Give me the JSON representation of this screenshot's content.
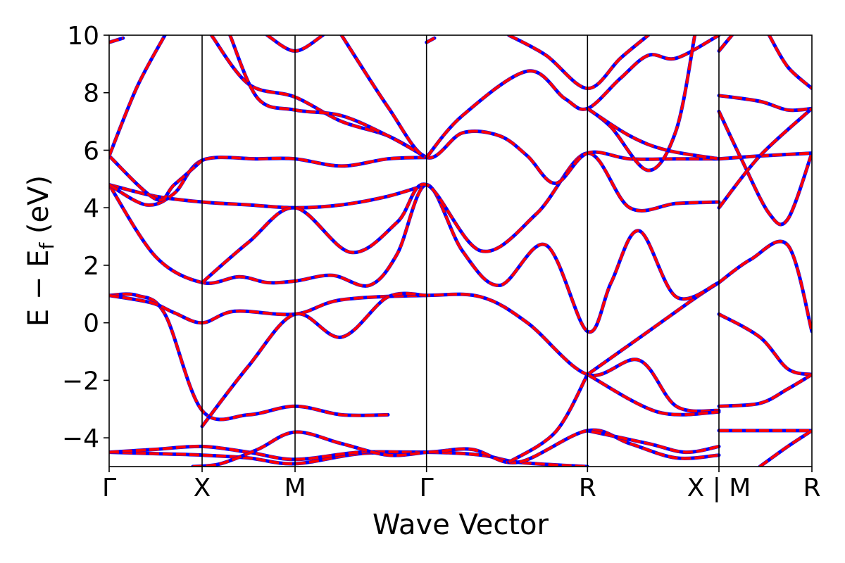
{
  "chart_data": {
    "type": "line",
    "xlabel": "Wave Vector",
    "ylabel_main": "E − E",
    "ylabel_sub": "f",
    "ylabel_unit": " (eV)",
    "ylim": [
      -5,
      10
    ],
    "yticks": [
      {
        "value": -4,
        "label": "−4"
      },
      {
        "value": -2,
        "label": "−2"
      },
      {
        "value": 0,
        "label": "0"
      },
      {
        "value": 2,
        "label": "2"
      },
      {
        "value": 4,
        "label": "4"
      },
      {
        "value": 6,
        "label": "6"
      },
      {
        "value": 8,
        "label": "8"
      },
      {
        "value": 10,
        "label": "10"
      }
    ],
    "kpoints": [
      {
        "pos": 0.0,
        "label": "Γ"
      },
      {
        "pos": 1.0,
        "label": "X"
      },
      {
        "pos": 2.0,
        "label": "M"
      },
      {
        "pos": 3.414,
        "label": "Γ"
      },
      {
        "pos": 5.146,
        "label": "R"
      },
      {
        "pos": 6.56,
        "label": "X | M"
      },
      {
        "pos": 7.56,
        "label": "R"
      }
    ],
    "xlim": [
      0,
      7.56
    ],
    "break_at": 6.56,
    "colors": {
      "dft": "#0000ff",
      "fit": "#ff0000",
      "frame": "#000000"
    },
    "series": [
      {
        "points": [
          [
            0,
            -4.5
          ],
          [
            0.5,
            -4.55
          ],
          [
            1,
            -4.6
          ],
          [
            1.5,
            -4.7
          ],
          [
            2,
            -4.9
          ],
          [
            2.7,
            -4.55
          ],
          [
            3.414,
            -4.5
          ],
          [
            4.0,
            -4.6
          ],
          [
            4.4,
            -4.85
          ],
          [
            5.146,
            -5.0
          ]
        ]
      },
      {
        "points": [
          [
            0,
            -4.5
          ],
          [
            0.5,
            -4.4
          ],
          [
            1,
            -4.3
          ],
          [
            1.5,
            -4.5
          ],
          [
            2,
            -4.75
          ],
          [
            2.7,
            -4.5
          ],
          [
            3.414,
            -4.5
          ],
          [
            3.9,
            -4.4
          ],
          [
            4.4,
            -4.85
          ],
          [
            5.146,
            -3.75
          ],
          [
            5.6,
            -4.2
          ],
          [
            6.1,
            -4.7
          ],
          [
            6.56,
            -4.6
          ]
        ]
      },
      {
        "points": [
          [
            6.56,
            -4.3
          ],
          [
            6.2,
            -4.5
          ],
          [
            5.8,
            -4.2
          ],
          [
            5.146,
            -3.75
          ]
        ]
      },
      {
        "points": [
          [
            0.9,
            -5.0
          ],
          [
            1.2,
            -4.9
          ],
          [
            1.6,
            -4.4
          ],
          [
            2,
            -3.8
          ],
          [
            2.5,
            -4.2
          ],
          [
            3.0,
            -4.6
          ],
          [
            3.414,
            -4.5
          ]
        ]
      },
      {
        "points": [
          [
            0,
            0.95
          ],
          [
            0.3,
            0.95
          ],
          [
            0.6,
            0.3
          ],
          [
            1,
            -3.05
          ],
          [
            1.5,
            -3.2
          ],
          [
            2,
            -2.9
          ],
          [
            2.5,
            -3.2
          ],
          [
            3.0,
            -3.2
          ]
        ]
      },
      {
        "points": [
          [
            0,
            0.95
          ],
          [
            0.45,
            0.7
          ],
          [
            0.7,
            0.35
          ],
          [
            1,
            0.0
          ],
          [
            1.35,
            0.4
          ],
          [
            2,
            0.3
          ],
          [
            2.5,
            0.8
          ],
          [
            3.414,
            0.95
          ],
          [
            4.0,
            0.9
          ],
          [
            4.5,
            0.0
          ],
          [
            5.146,
            -1.8
          ],
          [
            5.7,
            -1.3
          ],
          [
            6.1,
            -2.9
          ],
          [
            6.56,
            -3.05
          ]
        ]
      },
      {
        "points": [
          [
            1,
            -3.6
          ],
          [
            1.5,
            -1.5
          ],
          [
            2,
            0.3
          ],
          [
            2.5,
            -0.5
          ],
          [
            3.0,
            0.9
          ],
          [
            3.414,
            0.95
          ]
        ]
      },
      {
        "points": [
          [
            5.146,
            -1.8
          ],
          [
            5.8,
            -0.3
          ],
          [
            6.3,
            0.85
          ],
          [
            6.56,
            1.4
          ]
        ]
      },
      {
        "points": [
          [
            5.146,
            -1.8
          ],
          [
            5.9,
            -3.1
          ],
          [
            6.56,
            -3.1
          ]
        ]
      },
      {
        "points": [
          [
            4.3,
            -4.85
          ],
          [
            4.8,
            -3.8
          ],
          [
            5.146,
            -1.8
          ]
        ]
      },
      {
        "points": [
          [
            0,
            4.8
          ],
          [
            0.5,
            2.3
          ],
          [
            1,
            1.4
          ],
          [
            1.4,
            1.6
          ],
          [
            1.7,
            1.4
          ],
          [
            2,
            1.45
          ],
          [
            2.4,
            1.65
          ],
          [
            2.8,
            1.3
          ],
          [
            3.1,
            2.4
          ],
          [
            3.414,
            4.8
          ],
          [
            3.8,
            2.5
          ],
          [
            4.2,
            1.3
          ],
          [
            4.7,
            2.7
          ],
          [
            5.146,
            -0.3
          ],
          [
            5.4,
            1.4
          ],
          [
            5.7,
            3.2
          ],
          [
            6.1,
            0.9
          ],
          [
            6.56,
            1.4
          ]
        ]
      },
      {
        "points": [
          [
            0,
            4.8
          ],
          [
            0.5,
            4.4
          ],
          [
            1,
            4.2
          ],
          [
            1.5,
            4.1
          ],
          [
            2,
            4.0
          ],
          [
            2.5,
            4.1
          ],
          [
            3.0,
            4.4
          ],
          [
            3.414,
            4.8
          ]
        ]
      },
      {
        "points": [
          [
            1,
            1.4
          ],
          [
            1.5,
            2.8
          ],
          [
            2,
            4.0
          ],
          [
            2.6,
            2.45
          ],
          [
            3.1,
            3.5
          ],
          [
            3.414,
            4.8
          ],
          [
            4.0,
            2.5
          ],
          [
            4.6,
            3.8
          ],
          [
            5.146,
            5.9
          ],
          [
            5.6,
            4.0
          ],
          [
            6.1,
            4.15
          ],
          [
            6.56,
            4.2
          ]
        ]
      },
      {
        "points": [
          [
            0,
            4.8
          ],
          [
            0.4,
            4.1
          ],
          [
            0.7,
            4.5
          ],
          [
            1,
            5.65
          ],
          [
            1.6,
            5.7
          ],
          [
            2,
            5.7
          ],
          [
            2.5,
            5.45
          ],
          [
            3.0,
            5.7
          ],
          [
            3.414,
            5.75
          ]
        ]
      },
      {
        "points": [
          [
            0,
            5.8
          ],
          [
            0.5,
            4.3
          ],
          [
            0.7,
            4.8
          ],
          [
            1.0,
            5.65
          ]
        ]
      },
      {
        "points": [
          [
            0,
            5.8
          ],
          [
            0.3,
            8.2
          ],
          [
            0.6,
            10.0
          ]
        ]
      },
      {
        "points": [
          [
            0,
            9.75
          ],
          [
            0.15,
            9.9
          ]
        ]
      },
      {
        "points": [
          [
            1.1,
            10.0
          ],
          [
            1.5,
            8.3
          ],
          [
            2,
            7.85
          ],
          [
            2.5,
            7.0
          ],
          [
            3.0,
            6.5
          ],
          [
            3.414,
            5.75
          ]
        ]
      },
      {
        "points": [
          [
            1.3,
            10.0
          ],
          [
            1.6,
            7.8
          ],
          [
            2,
            7.4
          ],
          [
            2.5,
            7.2
          ],
          [
            3.0,
            6.5
          ],
          [
            3.414,
            5.75
          ]
        ]
      },
      {
        "points": [
          [
            1.7,
            10.0
          ],
          [
            2,
            9.45
          ],
          [
            2.3,
            10.0
          ]
        ]
      },
      {
        "points": [
          [
            2.5,
            10.0
          ],
          [
            3.0,
            7.5
          ],
          [
            3.414,
            5.75
          ],
          [
            3.8,
            6.6
          ],
          [
            4.2,
            6.5
          ],
          [
            4.5,
            5.8
          ],
          [
            4.8,
            4.85
          ],
          [
            5.146,
            5.9
          ],
          [
            5.6,
            5.7
          ],
          [
            6.1,
            5.7
          ],
          [
            6.56,
            5.7
          ]
        ]
      },
      {
        "points": [
          [
            3.414,
            5.75
          ],
          [
            3.8,
            7.2
          ],
          [
            4.5,
            8.75
          ],
          [
            4.9,
            7.8
          ],
          [
            5.146,
            7.45
          ],
          [
            5.5,
            8.5
          ],
          [
            5.8,
            9.3
          ],
          [
            6.1,
            9.2
          ],
          [
            6.56,
            10.0
          ]
        ]
      },
      {
        "points": [
          [
            3.414,
            9.75
          ],
          [
            3.5,
            9.9
          ]
        ]
      },
      {
        "points": [
          [
            4.3,
            10.0
          ],
          [
            4.7,
            9.3
          ],
          [
            5.146,
            8.15
          ],
          [
            5.5,
            9.2
          ],
          [
            5.8,
            10.0
          ]
        ]
      },
      {
        "points": [
          [
            5.146,
            7.45
          ],
          [
            5.4,
            6.8
          ],
          [
            5.8,
            5.3
          ],
          [
            6.1,
            6.7
          ],
          [
            6.3,
            10.0
          ]
        ]
      },
      {
        "points": [
          [
            5.146,
            7.45
          ],
          [
            5.6,
            6.5
          ],
          [
            6.0,
            6.0
          ],
          [
            6.56,
            5.7
          ]
        ]
      },
      {
        "points": [
          [
            6.56,
            9.45
          ],
          [
            6.7,
            10.0
          ]
        ]
      },
      {
        "points": [
          [
            6.56,
            7.9
          ],
          [
            7.0,
            7.7
          ],
          [
            7.3,
            7.4
          ],
          [
            7.56,
            7.45
          ]
        ]
      },
      {
        "points": [
          [
            6.56,
            7.35
          ],
          [
            6.8,
            5.7
          ],
          [
            7.1,
            3.8
          ],
          [
            7.3,
            3.6
          ],
          [
            7.56,
            5.9
          ]
        ]
      },
      {
        "points": [
          [
            6.56,
            5.7
          ],
          [
            7.0,
            5.8
          ],
          [
            7.56,
            5.9
          ]
        ]
      },
      {
        "points": [
          [
            6.56,
            4.0
          ],
          [
            7.0,
            5.8
          ],
          [
            7.56,
            7.45
          ]
        ]
      },
      {
        "points": [
          [
            6.56,
            1.4
          ],
          [
            6.9,
            2.2
          ],
          [
            7.3,
            2.7
          ],
          [
            7.56,
            -0.3
          ]
        ]
      },
      {
        "points": [
          [
            6.56,
            0.3
          ],
          [
            7.0,
            -0.5
          ],
          [
            7.3,
            -1.6
          ],
          [
            7.56,
            -1.8
          ]
        ]
      },
      {
        "points": [
          [
            6.56,
            -2.9
          ],
          [
            7.0,
            -2.8
          ],
          [
            7.3,
            -2.3
          ],
          [
            7.56,
            -1.8
          ]
        ]
      },
      {
        "points": [
          [
            6.56,
            -3.75
          ],
          [
            7.0,
            -3.75
          ],
          [
            7.56,
            -3.75
          ]
        ]
      },
      {
        "points": [
          [
            7.0,
            -5.0
          ],
          [
            7.3,
            -4.3
          ],
          [
            7.56,
            -3.75
          ]
        ]
      },
      {
        "points": [
          [
            7.1,
            10.0
          ],
          [
            7.3,
            8.9
          ],
          [
            7.56,
            8.15
          ]
        ]
      }
    ]
  }
}
